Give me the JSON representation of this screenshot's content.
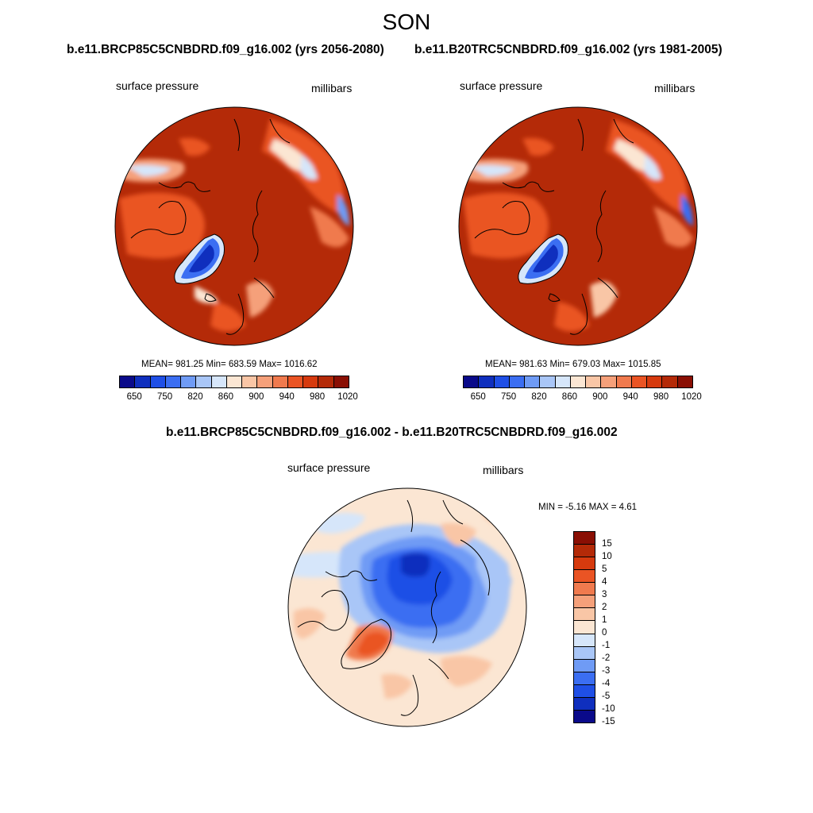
{
  "chart_data": {
    "type": "contour-map",
    "suptitle": "SON",
    "panels": [
      {
        "id": "future",
        "title": "b.e11.BRCP85C5CNBDRD.f09_g16.002 (yrs 2056-2080)",
        "left_label": "surface pressure",
        "right_label": "millibars",
        "projection": "north polar stereographic",
        "stats": {
          "text": "MEAN= 981.25  Min= 683.59  Max= 1016.62",
          "mean": 981.25,
          "min": 683.59,
          "max": 1016.62
        }
      },
      {
        "id": "historical",
        "title": "b.e11.B20TRC5CNBDRD.f09_g16.002 (yrs 1981-2005)",
        "left_label": "surface pressure",
        "right_label": "millibars",
        "projection": "north polar stereographic",
        "stats": {
          "text": "MEAN= 981.63  Min= 679.03  Max= 1015.85",
          "mean": 981.63,
          "min": 679.03,
          "max": 1015.85
        }
      },
      {
        "id": "difference",
        "title": "b.e11.BRCP85C5CNBDRD.f09_g16.002 - b.e11.B20TRC5CNBDRD.f09_g16.002",
        "left_label": "surface pressure",
        "right_label": "millibars",
        "projection": "north polar stereographic",
        "stats": {
          "text": "MIN =  -5.16 MAX =   4.61",
          "min": -5.16,
          "max": 4.61
        }
      }
    ],
    "abs_colorbar": {
      "orientation": "horizontal",
      "levels": [
        650,
        750,
        820,
        860,
        900,
        940,
        980,
        1020
      ],
      "tick_labels": [
        "650",
        "750",
        "820",
        "860",
        "900",
        "940",
        "980",
        "1020"
      ],
      "colors": [
        "#0a0a8a",
        "#0f2fbe",
        "#1f4fe6",
        "#3b6ef2",
        "#6f9bf5",
        "#a9c6f7",
        "#d6e6fa",
        "#fbe6d3",
        "#f9c6a6",
        "#f5a07a",
        "#f07a4e",
        "#ea5424",
        "#d63a0e",
        "#b42a08",
        "#8a0f04"
      ]
    },
    "diff_colorbar": {
      "orientation": "vertical",
      "tick_labels": [
        "15",
        "10",
        "5",
        "4",
        "3",
        "2",
        "1",
        "0",
        "-1",
        "-2",
        "-3",
        "-4",
        "-5",
        "-10",
        "-15"
      ],
      "colors": [
        "#8a0f04",
        "#b42a08",
        "#d63a0e",
        "#ea5424",
        "#f07a4e",
        "#f5a07a",
        "#f9c6a6",
        "#fbe6d3",
        "#d6e6fa",
        "#a9c6f7",
        "#6f9bf5",
        "#3b6ef2",
        "#1f4fe6",
        "#0f2fbe",
        "#0a0a8a"
      ]
    }
  }
}
